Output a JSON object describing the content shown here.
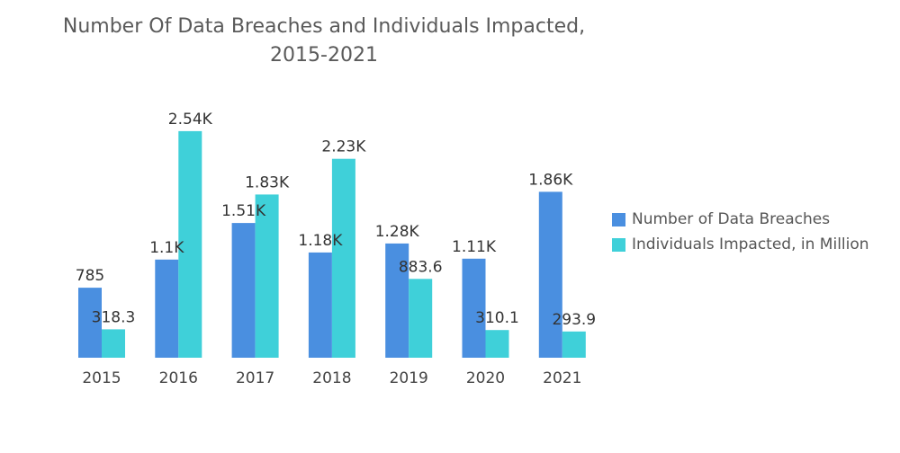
{
  "chart_data": {
    "type": "bar",
    "title": "Number Of Data Breaches and Individuals Impacted,",
    "subtitle": "2015-2021",
    "xlabel": "",
    "ylabel": "",
    "ylim": [
      0,
      2700
    ],
    "grid": false,
    "legend_position": "right",
    "categories": [
      "2015",
      "2016",
      "2017",
      "2018",
      "2019",
      "2020",
      "2021"
    ],
    "series": [
      {
        "name": "Number of Data Breaches",
        "color": "#4a8fe0",
        "values": [
          785,
          1100,
          1510,
          1180,
          1280,
          1110,
          1860
        ],
        "labels": [
          "785",
          "1.1K",
          "1.51K",
          "1.18K",
          "1.28K",
          "1.11K",
          "1.86K"
        ]
      },
      {
        "name": "Individuals Impacted, in Million",
        "color": "#3fd0d9",
        "values": [
          318.3,
          2540,
          1830,
          2230,
          883.6,
          310.1,
          293.9
        ],
        "labels": [
          "318.3",
          "2.54K",
          "1.83K",
          "2.23K",
          "883.6",
          "310.1",
          "293.9"
        ]
      }
    ]
  }
}
